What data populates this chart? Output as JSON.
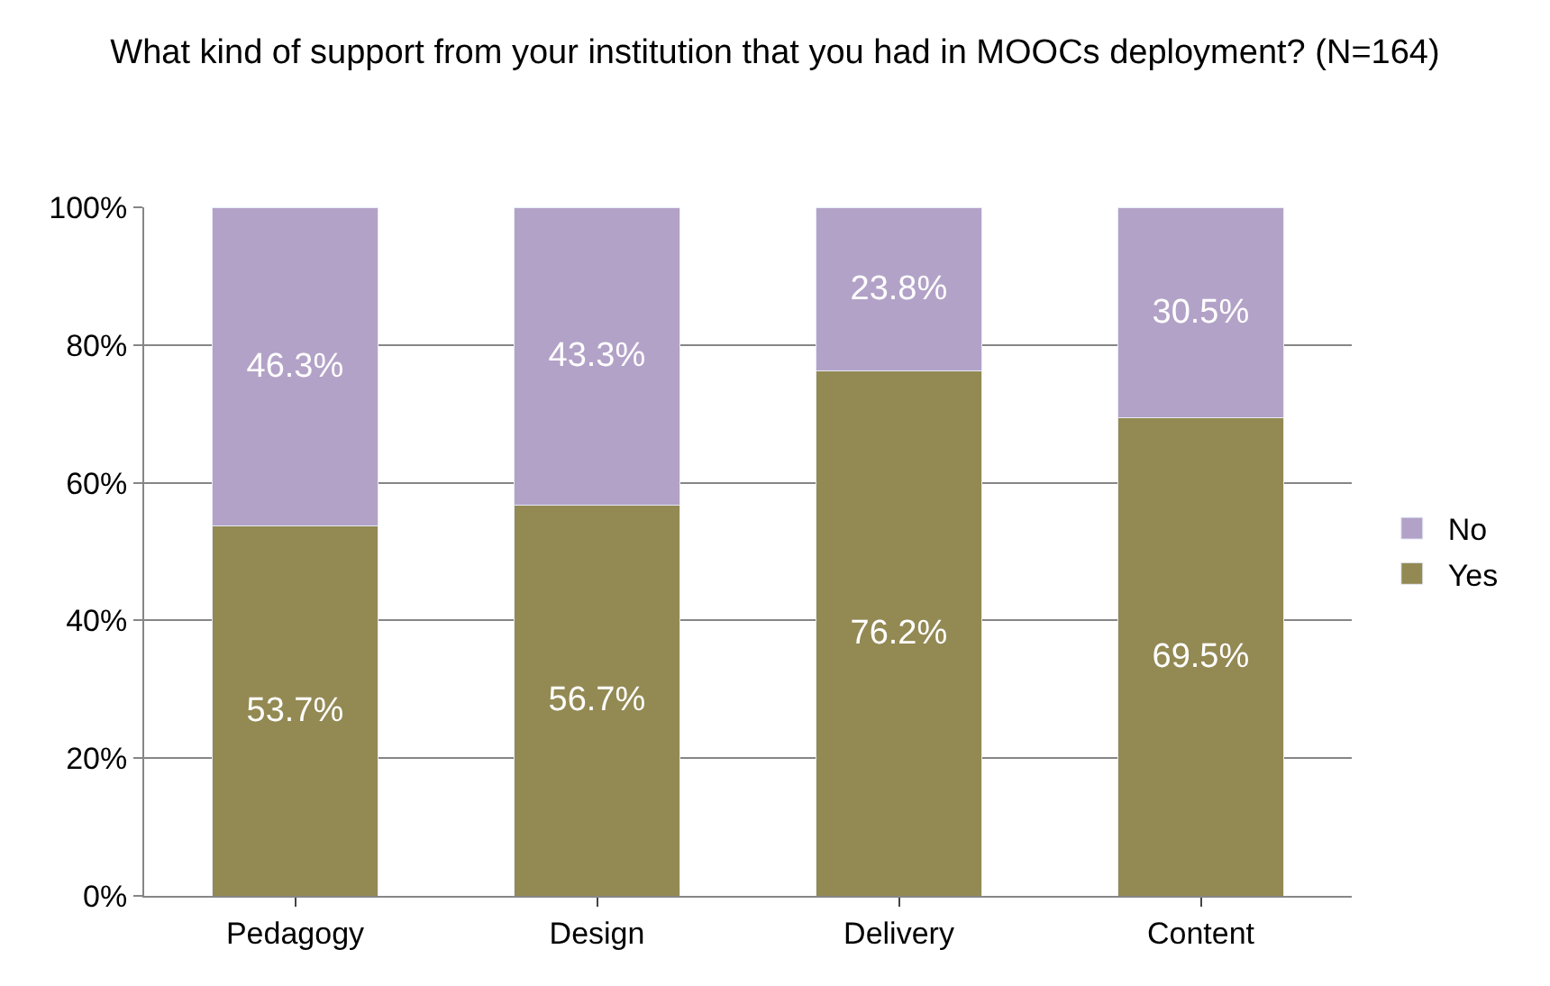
{
  "chart_data": {
    "type": "bar",
    "title": "What kind of support from your institution that you had in MOOCs deployment? (N=164)",
    "categories": [
      "Pedagogy",
      "Design",
      "Delivery",
      "Content"
    ],
    "stacked": true,
    "series": [
      {
        "name": "Yes",
        "color": "#938953",
        "values": [
          53.7,
          56.7,
          76.2,
          69.5
        ],
        "value_labels": [
          "53.7%",
          "56.7%",
          "76.2%",
          "69.5%"
        ]
      },
      {
        "name": "No",
        "color": "#b3a2c7",
        "values": [
          46.3,
          43.3,
          23.8,
          30.5
        ],
        "value_labels": [
          "46.3%",
          "43.3%",
          "23.8%",
          "30.5%"
        ]
      }
    ],
    "ylim": [
      0,
      100
    ],
    "yticks": [
      {
        "value": 0,
        "label": "0%"
      },
      {
        "value": 20,
        "label": "20%"
      },
      {
        "value": 40,
        "label": "40%"
      },
      {
        "value": 60,
        "label": "60%"
      },
      {
        "value": 80,
        "label": "80%"
      },
      {
        "value": 100,
        "label": "100%"
      }
    ],
    "grid": "y",
    "legend": "right"
  }
}
